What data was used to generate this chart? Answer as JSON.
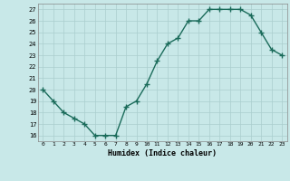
{
  "xlabel": "Humidex (Indice chaleur)",
  "x": [
    0,
    1,
    2,
    3,
    4,
    5,
    6,
    7,
    8,
    9,
    10,
    11,
    12,
    13,
    14,
    15,
    16,
    17,
    18,
    19,
    20,
    21,
    22,
    23
  ],
  "y": [
    20,
    19,
    18,
    17.5,
    17,
    16,
    16,
    16,
    18.5,
    19,
    20.5,
    22.5,
    24,
    24.5,
    26,
    26,
    27,
    27,
    27,
    27,
    26.5,
    25,
    23.5,
    23
  ],
  "line_color": "#1a6b5a",
  "bg_color": "#c8e8e8",
  "grid_color": "#aacece",
  "tick_label_color": "#000000",
  "ylim": [
    15.5,
    27.5
  ],
  "yticks": [
    16,
    17,
    18,
    19,
    20,
    21,
    22,
    23,
    24,
    25,
    26,
    27
  ],
  "marker": "+",
  "marker_size": 4,
  "line_width": 1.0
}
